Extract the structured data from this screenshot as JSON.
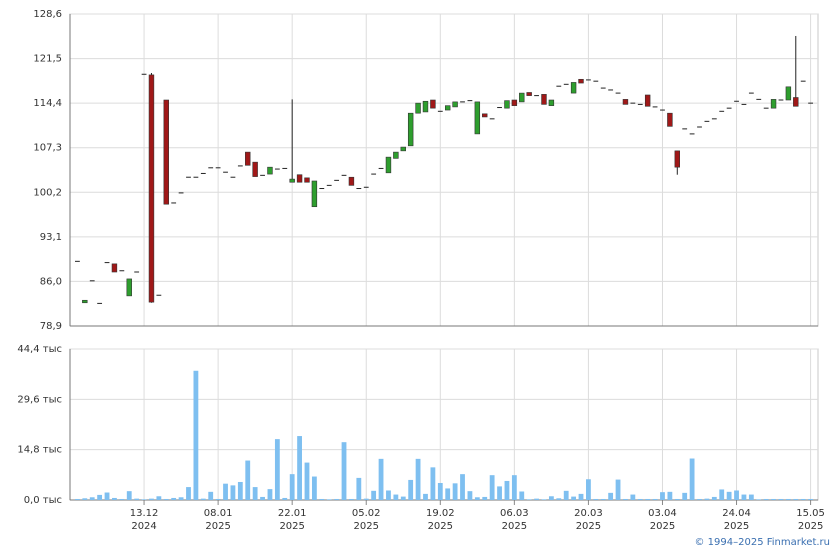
{
  "chart_data": [
    {
      "type": "candlestick",
      "up_color": "#2e9e2e",
      "down_color": "#a01818",
      "xlim": [
        -1,
        100
      ],
      "xticks": [
        9,
        19,
        29,
        39,
        49,
        59,
        69,
        79,
        89,
        99
      ],
      "ylim": [
        78.9,
        128.6
      ],
      "yticks": [
        {
          "value": 78.9,
          "label": "78,9"
        },
        {
          "value": 86.0,
          "label": "86,0"
        },
        {
          "value": 93.1,
          "label": "93,1"
        },
        {
          "value": 100.2,
          "label": "100,2"
        },
        {
          "value": 107.3,
          "label": "107,3"
        },
        {
          "value": 114.4,
          "label": "114,4"
        },
        {
          "value": 121.5,
          "label": "121,5"
        },
        {
          "value": 128.6,
          "label": "128,6"
        }
      ],
      "grid": true,
      "open": [
        89.2,
        82.6,
        86.1,
        82.5,
        89.0,
        88.8,
        87.7,
        83.7,
        87.5,
        119.0,
        118.9,
        83.8,
        114.9,
        98.5,
        100.1,
        102.6,
        102.6,
        103.2,
        104.1,
        104.1,
        103.4,
        102.6,
        104.4,
        106.6,
        105.0,
        102.9,
        103.1,
        103.9,
        104.0,
        101.8,
        103.0,
        102.5,
        97.9,
        100.8,
        101.3,
        102.1,
        102.9,
        102.6,
        100.8,
        101.0,
        103.1,
        104.0,
        103.3,
        105.6,
        106.8,
        107.6,
        112.8,
        113.0,
        114.9,
        113.1,
        113.3,
        113.8,
        114.6,
        114.8,
        109.5,
        112.7,
        111.9,
        113.7,
        113.6,
        114.9,
        114.6,
        116.1,
        115.6,
        115.8,
        114.0,
        117.1,
        117.4,
        116.0,
        118.2,
        118.1,
        117.9,
        116.8,
        116.5,
        116.0,
        115.0,
        114.4,
        114.2,
        115.7,
        113.8,
        113.3,
        112.8,
        106.8,
        110.3,
        109.5,
        110.6,
        111.5,
        111.9,
        113.1,
        113.6,
        114.7,
        114.2,
        116.0,
        115.0,
        113.6,
        113.6,
        114.9,
        114.9,
        115.3,
        117.9,
        114.4
      ],
      "high": [
        89.2,
        83.0,
        86.1,
        82.5,
        89.0,
        88.8,
        87.7,
        86.4,
        87.5,
        119.0,
        119.2,
        83.8,
        114.9,
        98.5,
        100.1,
        102.6,
        102.6,
        103.2,
        104.1,
        104.1,
        103.4,
        102.6,
        104.4,
        106.6,
        105.0,
        102.9,
        104.2,
        103.9,
        104.0,
        115.0,
        103.0,
        102.5,
        102.0,
        100.8,
        101.3,
        102.1,
        102.9,
        102.6,
        100.8,
        101.0,
        103.1,
        104.0,
        105.8,
        106.6,
        107.4,
        112.8,
        114.4,
        114.7,
        114.9,
        113.1,
        114.0,
        114.6,
        114.6,
        114.8,
        114.6,
        112.7,
        111.9,
        113.7,
        114.8,
        114.9,
        116.0,
        116.1,
        115.6,
        115.8,
        114.9,
        117.1,
        117.4,
        117.7,
        118.2,
        118.1,
        117.9,
        116.8,
        116.5,
        116.0,
        115.0,
        114.4,
        114.2,
        115.7,
        113.8,
        113.3,
        112.8,
        106.8,
        110.3,
        109.5,
        110.6,
        111.5,
        111.9,
        113.1,
        113.6,
        114.7,
        114.2,
        116.0,
        115.0,
        113.6,
        115.0,
        114.9,
        117.0,
        125.1,
        117.9,
        114.4
      ],
      "low": [
        89.2,
        82.6,
        86.1,
        82.5,
        89.0,
        87.5,
        87.7,
        83.7,
        87.5,
        119.0,
        82.6,
        83.8,
        98.3,
        98.5,
        100.1,
        102.6,
        102.6,
        103.2,
        104.1,
        104.1,
        103.4,
        102.6,
        104.4,
        104.5,
        102.7,
        102.9,
        103.1,
        103.9,
        104.0,
        101.8,
        101.8,
        101.8,
        97.9,
        100.8,
        101.3,
        102.1,
        102.9,
        101.3,
        100.8,
        101.0,
        103.1,
        104.0,
        103.3,
        105.6,
        106.8,
        107.6,
        112.8,
        113.0,
        113.6,
        113.1,
        113.3,
        113.8,
        114.6,
        114.8,
        109.5,
        112.2,
        111.9,
        113.7,
        113.6,
        114.0,
        114.6,
        115.6,
        115.6,
        114.2,
        114.0,
        117.1,
        117.4,
        116.0,
        117.6,
        118.1,
        117.9,
        116.8,
        116.5,
        116.0,
        114.2,
        114.4,
        114.2,
        113.9,
        113.8,
        113.3,
        110.7,
        103.0,
        110.3,
        109.5,
        110.6,
        111.5,
        111.9,
        113.1,
        113.6,
        114.7,
        114.2,
        116.0,
        115.0,
        113.6,
        113.6,
        114.9,
        114.9,
        113.9,
        117.9,
        114.4
      ],
      "close": [
        89.2,
        83.0,
        86.1,
        82.5,
        89.0,
        87.5,
        87.7,
        86.4,
        87.5,
        119.0,
        82.7,
        83.8,
        98.3,
        98.5,
        100.1,
        102.6,
        102.6,
        103.2,
        104.1,
        104.1,
        103.4,
        102.6,
        104.4,
        104.5,
        102.7,
        102.9,
        104.2,
        103.9,
        104.0,
        102.3,
        101.8,
        101.8,
        102.0,
        100.8,
        101.3,
        102.1,
        102.9,
        101.3,
        100.8,
        101.0,
        103.1,
        104.0,
        105.8,
        106.6,
        107.4,
        112.8,
        114.4,
        114.7,
        113.6,
        113.1,
        114.0,
        114.6,
        114.6,
        114.8,
        114.6,
        112.2,
        111.9,
        113.7,
        114.8,
        114.0,
        116.0,
        115.6,
        115.6,
        114.2,
        114.9,
        117.1,
        117.4,
        117.7,
        117.6,
        118.1,
        117.9,
        116.8,
        116.5,
        116.0,
        114.2,
        114.4,
        114.2,
        113.9,
        113.8,
        113.3,
        110.7,
        104.2,
        110.3,
        109.5,
        110.6,
        111.5,
        111.9,
        113.1,
        113.6,
        114.7,
        114.2,
        116.0,
        115.0,
        113.6,
        115.0,
        114.9,
        117.0,
        113.9,
        117.9,
        114.4
      ]
    },
    {
      "type": "bar",
      "color": "#7ebff0",
      "xlim": [
        -1,
        100
      ],
      "xticks": [
        {
          "value": 9,
          "label": "13.12",
          "year": "2024"
        },
        {
          "value": 19,
          "label": "08.01",
          "year": "2025"
        },
        {
          "value": 29,
          "label": "22.01",
          "year": "2025"
        },
        {
          "value": 39,
          "label": "05.02",
          "year": "2025"
        },
        {
          "value": 49,
          "label": "19.02",
          "year": "2025"
        },
        {
          "value": 59,
          "label": "06.03",
          "year": "2025"
        },
        {
          "value": 69,
          "label": "20.03",
          "year": "2025"
        },
        {
          "value": 79,
          "label": "03.04",
          "year": "2025"
        },
        {
          "value": 89,
          "label": "24.04",
          "year": "2025"
        },
        {
          "value": 99,
          "label": "15.05",
          "year": "2025"
        }
      ],
      "ylim": [
        0,
        44.4
      ],
      "yticks": [
        {
          "value": 0,
          "label": "0,0 тыс"
        },
        {
          "value": 14.8,
          "label": "14,8 тыс"
        },
        {
          "value": 29.6,
          "label": "29,6 тыс"
        },
        {
          "value": 44.4,
          "label": "44,4 тыс"
        }
      ],
      "grid": true,
      "values": [
        0.3,
        0.5,
        0.8,
        1.5,
        2.2,
        0.6,
        0.3,
        2.6,
        0.4,
        0.2,
        0.4,
        1.1,
        0.3,
        0.6,
        0.8,
        3.8,
        38.0,
        0.4,
        2.4,
        0.3,
        4.8,
        4.3,
        5.3,
        11.6,
        3.8,
        0.9,
        3.2,
        17.9,
        0.6,
        7.6,
        18.8,
        11.0,
        6.9,
        0.3,
        0.2,
        0.3,
        17.0,
        0.3,
        6.5,
        0.4,
        2.7,
        12.1,
        2.8,
        1.6,
        1.0,
        5.9,
        12.1,
        1.8,
        9.6,
        5.0,
        3.4,
        4.9,
        7.6,
        2.6,
        0.8,
        0.9,
        7.3,
        4.0,
        5.6,
        7.3,
        2.5,
        0.2,
        0.4,
        0.2,
        1.1,
        0.5,
        2.7,
        1.0,
        1.8,
        6.1,
        0.3,
        0.3,
        2.1,
        6.0,
        0.3,
        1.6,
        0.3,
        0.3,
        0.3,
        2.3,
        2.4,
        0.3,
        2.1,
        12.2,
        0.3,
        0.4,
        0.9,
        3.1,
        2.4,
        2.8,
        1.6,
        1.6,
        0.2,
        0.3,
        0.3,
        0.3,
        0.3,
        0.3,
        0.3,
        0.3
      ]
    }
  ],
  "footer": "© 1994–2025 Finmarket.ru"
}
